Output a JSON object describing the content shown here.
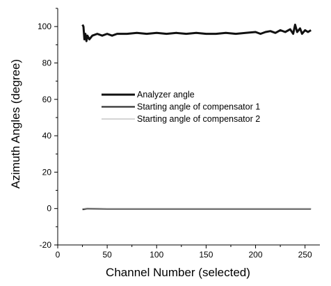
{
  "chart_data": {
    "type": "line",
    "xlabel": "Channel Number (selected)",
    "ylabel": "Azimuth Angles (degree)",
    "xlim": [
      0,
      265
    ],
    "ylim": [
      -20,
      110
    ],
    "x_ticks": [
      0,
      50,
      100,
      150,
      200,
      250
    ],
    "y_ticks": [
      -20,
      0,
      20,
      40,
      60,
      80,
      100
    ],
    "grid": false,
    "legend_position": "center-left",
    "series": [
      {
        "name": "Analyzer angle",
        "color": "#111111",
        "x": [
          25,
          26,
          27,
          28,
          29,
          30,
          32,
          35,
          40,
          45,
          50,
          55,
          60,
          70,
          80,
          90,
          100,
          110,
          120,
          130,
          140,
          150,
          160,
          170,
          180,
          190,
          200,
          205,
          210,
          215,
          220,
          225,
          230,
          235,
          238,
          240,
          242,
          245,
          247,
          250,
          253,
          256
        ],
        "y": [
          101,
          100,
          93,
          96,
          92,
          95,
          93,
          95,
          96,
          95,
          96,
          95,
          96,
          96,
          96.5,
          96,
          96.5,
          96,
          96.5,
          96,
          96.5,
          96,
          96,
          96.5,
          96,
          96.5,
          97,
          96,
          97,
          97.5,
          96.5,
          98,
          97,
          98.5,
          96,
          101,
          97,
          99,
          96,
          98,
          97,
          98
        ]
      },
      {
        "name": "Starting angle of compensator 1",
        "color": "#333333",
        "x": [
          25,
          30,
          50,
          100,
          150,
          200,
          256
        ],
        "y": [
          -0.5,
          0,
          -0.2,
          -0.2,
          -0.2,
          -0.2,
          -0.2
        ]
      },
      {
        "name": "Starting angle of compensator 2",
        "color": "#bbbbbb",
        "x": [
          25,
          30,
          50,
          100,
          150,
          200,
          256
        ],
        "y": [
          0,
          0.3,
          0.1,
          0.1,
          0.1,
          0.1,
          0.1
        ]
      }
    ]
  }
}
